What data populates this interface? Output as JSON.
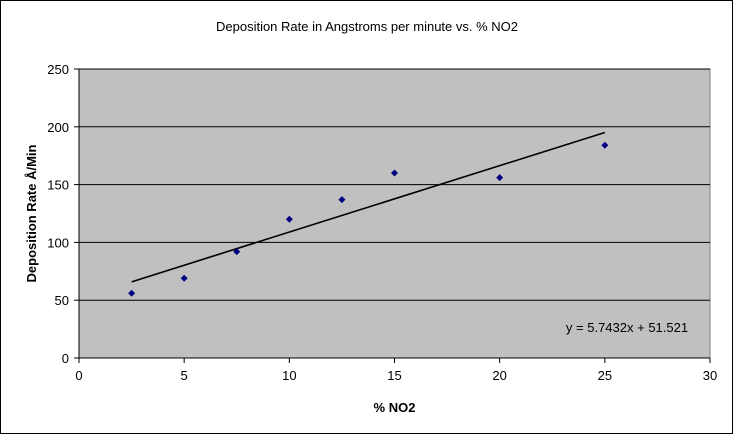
{
  "chart_data": {
    "type": "scatter",
    "title": "Deposition Rate in Angstroms per minute vs. % NO2",
    "xlabel": "% NO2",
    "ylabel": "Deposition Rate Å/Min",
    "xlim": [
      0,
      30
    ],
    "ylim": [
      0,
      250
    ],
    "xticks": [
      0,
      5,
      10,
      15,
      20,
      25,
      30
    ],
    "yticks": [
      0,
      50,
      100,
      150,
      200,
      250
    ],
    "grid": "horizontal",
    "plot_background": "#c0c0c0",
    "marker_color": "#000080",
    "trendline_color": "#000000",
    "series": [
      {
        "points": [
          {
            "x": 2.5,
            "y": 56
          },
          {
            "x": 5,
            "y": 69
          },
          {
            "x": 7.5,
            "y": 92
          },
          {
            "x": 10,
            "y": 120
          },
          {
            "x": 12.5,
            "y": 137
          },
          {
            "x": 15,
            "y": 160
          },
          {
            "x": 20,
            "y": 156
          },
          {
            "x": 25,
            "y": 184
          }
        ]
      }
    ],
    "trendline": {
      "type": "linear",
      "slope": 5.7432,
      "intercept": 51.521,
      "x_range": [
        2.5,
        25
      ],
      "equation": "y = 5.7432x + 51.521"
    }
  }
}
